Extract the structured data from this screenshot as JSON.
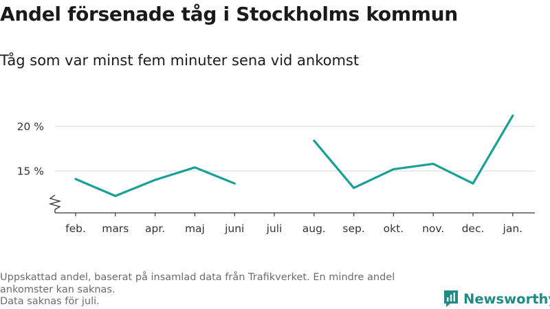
{
  "title": "Andel försenade tåg i Stockholms kommun",
  "subtitle": "Tåg som var minst fem minuter sena vid ankomst",
  "footer_lines": [
    "Uppskattad andel, baserat på insamlad data från Trafikverket. En mindre andel ankomster kan saknas.",
    "Data saknas för juli."
  ],
  "brand": "Newsworthy",
  "colors": {
    "line": "#17a096",
    "brand": "#1e8c84",
    "grid": "#dddddd",
    "axis": "#333333"
  },
  "chart_data": {
    "type": "line",
    "title": "Andel försenade tåg i Stockholms kommun",
    "subtitle": "Tåg som var minst fem minuter sena vid ankomst",
    "categories": [
      "feb.",
      "mars",
      "apr.",
      "maj",
      "juni",
      "juli",
      "aug.",
      "sep.",
      "okt.",
      "nov.",
      "dec.",
      "jan."
    ],
    "series": [
      {
        "values": [
          14.1,
          12.2,
          14.0,
          15.4,
          13.6,
          null,
          18.4,
          13.1,
          15.2,
          15.8,
          13.6,
          21.2
        ]
      }
    ],
    "y_ticks": [
      15,
      20
    ],
    "y_tick_suffix": " %",
    "ylim": [
      11,
      22.5
    ],
    "y_axis_break": true,
    "grid": true,
    "legend": "none"
  }
}
